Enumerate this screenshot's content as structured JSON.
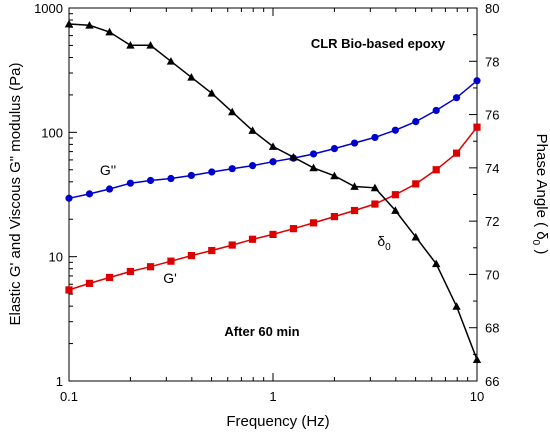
{
  "chart_data": {
    "type": "line",
    "title": "CLR Bio-based epoxy",
    "annotation": "After 60 min",
    "xlabel": "Frequency  (Hz)",
    "ylabel_left": "Elastic G' and Viscous G\" modulus (Pa)",
    "ylabel_right_main": "Phase Angle ( δ",
    "ylabel_right_sub": "0",
    "ylabel_right_close": " )",
    "x_scale": "log",
    "y_left_scale": "log",
    "xlim": [
      0.1,
      10
    ],
    "y_left_lim": [
      1,
      1000
    ],
    "y_right_lim": [
      66,
      80
    ],
    "x_ticks": [
      {
        "value": 0.1,
        "label": "0.1"
      },
      {
        "value": 1,
        "label": "1"
      },
      {
        "value": 10,
        "label": "10"
      }
    ],
    "y_left_ticks": [
      {
        "value": 1,
        "label": "1"
      },
      {
        "value": 10,
        "label": "10"
      },
      {
        "value": 100,
        "label": "100"
      },
      {
        "value": 1000,
        "label": "1000"
      }
    ],
    "y_right_ticks": [
      {
        "value": 66,
        "label": "66"
      },
      {
        "value": 68,
        "label": "68"
      },
      {
        "value": 70,
        "label": "70"
      },
      {
        "value": 72,
        "label": "72"
      },
      {
        "value": 74,
        "label": "74"
      },
      {
        "value": 76,
        "label": "76"
      },
      {
        "value": 78,
        "label": "78"
      },
      {
        "value": 80,
        "label": "80"
      }
    ],
    "x": [
      0.1,
      0.126,
      0.158,
      0.2,
      0.251,
      0.316,
      0.398,
      0.501,
      0.631,
      0.794,
      1.0,
      1.26,
      1.58,
      2.0,
      2.51,
      3.16,
      3.98,
      5.01,
      6.31,
      7.94,
      10.0
    ],
    "series": [
      {
        "name": "G''",
        "axis": "left",
        "marker": "circle",
        "color": "#0000cc",
        "values": [
          29.5,
          32,
          35,
          39,
          41,
          42.5,
          45,
          48,
          51,
          54,
          58,
          62,
          67,
          74,
          82,
          91,
          104,
          122,
          150,
          190,
          260
        ]
      },
      {
        "name": "G'",
        "axis": "left",
        "marker": "square",
        "color": "#dd0000",
        "values": [
          5.4,
          6.1,
          6.8,
          7.6,
          8.3,
          9.2,
          10.2,
          11.2,
          12.4,
          13.8,
          15.1,
          16.8,
          18.7,
          21.0,
          23.5,
          26.5,
          31.5,
          38.5,
          50,
          68,
          110
        ]
      },
      {
        "name": "δ",
        "name_sub": "0",
        "axis": "right",
        "marker": "triangle",
        "color": "#000000",
        "values": [
          79.4,
          79.35,
          79.1,
          78.6,
          78.6,
          78.0,
          77.4,
          76.8,
          76.1,
          75.4,
          74.8,
          74.4,
          74.0,
          73.7,
          73.3,
          73.25,
          72.4,
          71.4,
          70.4,
          68.8,
          66.8
        ]
      }
    ],
    "grid": false,
    "legend": "none"
  }
}
